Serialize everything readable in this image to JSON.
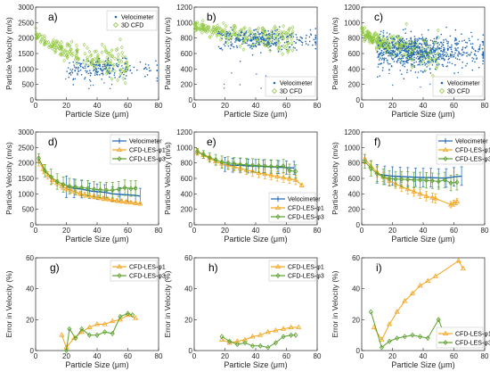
{
  "colors": {
    "velocimeter": "#1f66b4",
    "cfd": "#8ec63f",
    "phi1": "#f2a51e",
    "phi3": "#5aa02c",
    "axis": "#262626"
  },
  "chart_data": [
    {
      "id": "a",
      "panel_label": "a)",
      "type": "scatter",
      "xlabel": "Particle Size (μm)",
      "ylabel": "Particle Velocity (m/s)",
      "xlim": [
        0,
        80
      ],
      "ylim": [
        0,
        3000
      ],
      "xticks": [
        0,
        20,
        40,
        60,
        80
      ],
      "yticks": [
        0,
        500,
        1000,
        1500,
        2000,
        2500,
        3000
      ],
      "legend": {
        "position": "top-right",
        "entries": [
          "Velocimeter",
          "3D CFD"
        ]
      },
      "cloud": {
        "velocimeter": {
          "x_range": [
            20,
            70
          ],
          "y_center": 1000,
          "y_spread": 150,
          "points": 180
        },
        "cfd": {
          "x_range": [
            0,
            60
          ],
          "y_start": 2200,
          "y_end": 1150,
          "y_spread": 200,
          "points": 200
        }
      }
    },
    {
      "id": "b",
      "panel_label": "b)",
      "type": "scatter",
      "xlabel": "Particle Size (μm)",
      "ylabel": "Particle Velocity (m/s)",
      "xlim": [
        0,
        80
      ],
      "ylim": [
        0,
        1200
      ],
      "xticks": [
        0,
        20,
        40,
        60,
        80
      ],
      "yticks": [
        0,
        200,
        400,
        600,
        800,
        1000,
        1200
      ],
      "legend": {
        "position": "bottom-right",
        "entries": [
          "Velocimeter",
          "3D CFD"
        ]
      },
      "cloud": {
        "velocimeter": {
          "x_range": [
            15,
            75
          ],
          "y_center": 780,
          "y_spread": 70,
          "points": 260
        },
        "cfd": {
          "x_range": [
            0,
            65
          ],
          "y_start": 980,
          "y_end": 780,
          "y_spread": 70,
          "points": 240
        }
      }
    },
    {
      "id": "c",
      "panel_label": "c)",
      "type": "scatter",
      "xlabel": "Particle Size (μm)",
      "ylabel": "Particle Velocity (m/s)",
      "xlim": [
        0,
        80
      ],
      "ylim": [
        0,
        1200
      ],
      "xticks": [
        0,
        20,
        40,
        60,
        80
      ],
      "yticks": [
        0,
        200,
        400,
        600,
        800,
        1000,
        1200
      ],
      "legend": {
        "position": "bottom-right",
        "entries": [
          "Velocimeter",
          "3D CFD"
        ]
      },
      "cloud": {
        "velocimeter": {
          "x_range": [
            10,
            70
          ],
          "y_center": 620,
          "y_spread": 110,
          "points": 700
        },
        "cfd": {
          "x_range": [
            0,
            50
          ],
          "y_start": 900,
          "y_end": 600,
          "y_spread": 90,
          "points": 260
        }
      }
    },
    {
      "id": "d",
      "panel_label": "d)",
      "type": "line",
      "xlabel": "Particle Size (μm)",
      "ylabel": "Particle Velocity (m/s)",
      "xlim": [
        0,
        80
      ],
      "ylim": [
        0,
        3000
      ],
      "xticks": [
        0,
        20,
        40,
        60,
        80
      ],
      "yticks": [
        0,
        500,
        1000,
        1500,
        2000,
        2500,
        3000
      ],
      "legend": {
        "position": "top-right"
      },
      "series": [
        {
          "name": "Velocimeter",
          "color_key": "velocimeter",
          "x": [
            20,
            25,
            30,
            35,
            40,
            45,
            50,
            55,
            60,
            65,
            68
          ],
          "y": [
            1230,
            1180,
            1150,
            1100,
            1070,
            1050,
            1000,
            980,
            970,
            950,
            930
          ],
          "err": [
            350,
            300,
            280,
            250,
            250,
            250,
            230,
            220,
            220,
            250,
            250
          ]
        },
        {
          "name": "CFD-LES-φ1",
          "color_key": "phi1",
          "x": [
            2,
            5,
            8,
            11,
            14,
            17,
            20,
            23,
            26,
            29,
            32,
            35,
            38,
            41,
            44,
            47,
            50,
            53,
            56,
            59,
            62,
            65,
            68
          ],
          "y": [
            2050,
            1800,
            1600,
            1450,
            1350,
            1250,
            1170,
            1110,
            1060,
            1010,
            970,
            940,
            910,
            880,
            850,
            830,
            800,
            780,
            760,
            740,
            720,
            700,
            680
          ],
          "err": [
            150,
            150,
            120,
            120,
            100,
            100,
            100,
            90,
            90,
            80,
            80,
            80,
            70,
            70,
            70,
            60,
            60,
            60,
            60,
            60,
            50,
            50,
            50
          ]
        },
        {
          "name": "CFD-LES-φ3",
          "color_key": "phi3",
          "x": [
            2,
            6,
            10,
            14,
            18,
            22,
            26,
            30,
            34,
            38,
            42,
            46,
            50,
            54,
            58,
            62,
            65
          ],
          "y": [
            2150,
            1750,
            1550,
            1400,
            1300,
            1250,
            1220,
            1200,
            1180,
            1150,
            1130,
            1120,
            1120,
            1150,
            1200,
            1170,
            1180
          ],
          "err": [
            150,
            200,
            250,
            250,
            250,
            250,
            250,
            250,
            250,
            250,
            250,
            250,
            250,
            250,
            250,
            250,
            250
          ]
        }
      ]
    },
    {
      "id": "e",
      "panel_label": "e)",
      "type": "line",
      "xlabel": "Particle Size (μm)",
      "ylabel": "Particle Velocity (m/s)",
      "xlim": [
        0,
        80
      ],
      "ylim": [
        0,
        1200
      ],
      "xticks": [
        0,
        20,
        40,
        60,
        80
      ],
      "yticks": [
        0,
        200,
        400,
        600,
        800,
        1000,
        1200
      ],
      "legend": {
        "position": "bottom-right"
      },
      "series": [
        {
          "name": "Velocimeter",
          "color_key": "velocimeter",
          "x": [
            20,
            25,
            30,
            35,
            40,
            45,
            50,
            55,
            60,
            65
          ],
          "y": [
            780,
            770,
            770,
            760,
            760,
            755,
            750,
            745,
            740,
            735
          ],
          "err": [
            90,
            90,
            90,
            90,
            85,
            85,
            85,
            85,
            85,
            85
          ]
        },
        {
          "name": "CFD-LES-φ1",
          "color_key": "phi1",
          "x": [
            2,
            6,
            10,
            14,
            18,
            22,
            26,
            30,
            34,
            38,
            42,
            46,
            50,
            54,
            58,
            62,
            66,
            70
          ],
          "y": [
            940,
            900,
            860,
            820,
            790,
            770,
            750,
            730,
            710,
            690,
            670,
            655,
            640,
            625,
            610,
            595,
            580,
            510
          ],
          "err": [
            40,
            40,
            40,
            45,
            50,
            55,
            55,
            60,
            60,
            60,
            60,
            60,
            60,
            60,
            60,
            60,
            60,
            20
          ]
        },
        {
          "name": "CFD-LES-φ3",
          "color_key": "phi3",
          "x": [
            2,
            6,
            10,
            14,
            18,
            22,
            26,
            30,
            34,
            38,
            42,
            46,
            50,
            54,
            58,
            62,
            66
          ],
          "y": [
            950,
            910,
            870,
            840,
            810,
            800,
            790,
            780,
            775,
            770,
            765,
            760,
            755,
            750,
            760,
            700,
            690
          ],
          "err": [
            40,
            50,
            60,
            70,
            80,
            80,
            80,
            85,
            85,
            85,
            85,
            85,
            85,
            85,
            85,
            85,
            85
          ]
        }
      ]
    },
    {
      "id": "f",
      "panel_label": "f)",
      "type": "line",
      "xlabel": "Particle Size (μm)",
      "ylabel": "Particle Velocity (m/s)",
      "xlim": [
        0,
        80
      ],
      "ylim": [
        0,
        1200
      ],
      "xticks": [
        0,
        20,
        40,
        60,
        80
      ],
      "yticks": [
        0,
        200,
        400,
        600,
        800,
        1000,
        1200
      ],
      "legend": {
        "position": "top-right"
      },
      "series": [
        {
          "name": "Velocimeter",
          "color_key": "velocimeter",
          "x": [
            10,
            15,
            20,
            25,
            30,
            35,
            40,
            45,
            50,
            55,
            60,
            65
          ],
          "y": [
            660,
            640,
            630,
            625,
            620,
            615,
            610,
            610,
            605,
            605,
            620,
            630
          ],
          "err": [
            120,
            120,
            120,
            120,
            120,
            120,
            120,
            120,
            120,
            120,
            120,
            120
          ]
        },
        {
          "name": "CFD-LES-φ1",
          "color_key": "phi1",
          "x": [
            2,
            6,
            10,
            14,
            18,
            22,
            26,
            30,
            34,
            38,
            42,
            46,
            48,
            58,
            60,
            62
          ],
          "y": [
            850,
            760,
            680,
            620,
            570,
            530,
            490,
            460,
            430,
            400,
            370,
            350,
            340,
            260,
            280,
            300
          ],
          "err": [
            60,
            60,
            60,
            60,
            60,
            60,
            60,
            60,
            60,
            60,
            60,
            60,
            60,
            40,
            40,
            40
          ]
        },
        {
          "name": "CFD-LES-φ3",
          "color_key": "phi3",
          "x": [
            2,
            6,
            10,
            14,
            18,
            22,
            26,
            30,
            34,
            38,
            42,
            46,
            50,
            54,
            58,
            62
          ],
          "y": [
            820,
            730,
            660,
            620,
            600,
            590,
            590,
            585,
            580,
            580,
            575,
            570,
            560,
            580,
            540,
            550
          ],
          "err": [
            90,
            100,
            100,
            100,
            100,
            100,
            100,
            100,
            100,
            100,
            100,
            100,
            100,
            100,
            100,
            100
          ]
        }
      ]
    },
    {
      "id": "g",
      "panel_label": "g)",
      "type": "line",
      "xlabel": "Particle Size (μm)",
      "ylabel": "Error in Velocity (%)",
      "xlim": [
        0,
        80
      ],
      "ylim": [
        0,
        60
      ],
      "xticks": [
        0,
        20,
        40,
        60,
        80
      ],
      "yticks": [
        0,
        20,
        40,
        60
      ],
      "legend": {
        "position": "top-right"
      },
      "series": [
        {
          "name": "CFD-LES-φ1",
          "color_key": "phi1",
          "x": [
            17,
            20,
            25,
            30,
            35,
            40,
            45,
            50,
            55,
            60,
            65
          ],
          "y": [
            10,
            2,
            8,
            12,
            15,
            17,
            17,
            19,
            20,
            23,
            21
          ]
        },
        {
          "name": "CFD-LES-φ3",
          "color_key": "phi3",
          "x": [
            20,
            22,
            26,
            30,
            35,
            40,
            45,
            50,
            55,
            60,
            63
          ],
          "y": [
            0,
            14,
            8,
            14,
            10,
            10,
            12,
            11,
            22,
            24,
            23
          ]
        }
      ]
    },
    {
      "id": "h",
      "panel_label": "h)",
      "type": "line",
      "xlabel": "Particle Size (μm)",
      "ylabel": "Error in Velocity (%)",
      "xlim": [
        0,
        80
      ],
      "ylim": [
        0,
        60
      ],
      "xticks": [
        0,
        20,
        40,
        60,
        80
      ],
      "yticks": [
        0,
        20,
        40,
        60
      ],
      "legend": {
        "position": "top-right"
      },
      "series": [
        {
          "name": "CFD-LES-φ1",
          "color_key": "phi1",
          "x": [
            18,
            23,
            28,
            33,
            38,
            43,
            48,
            53,
            58,
            63,
            68
          ],
          "y": [
            7,
            5,
            6,
            7,
            9,
            10,
            12,
            13,
            14,
            15,
            15
          ]
        },
        {
          "name": "CFD-LES-φ3",
          "color_key": "phi3",
          "x": [
            18,
            23,
            28,
            33,
            38,
            43,
            48,
            53,
            58,
            63,
            66
          ],
          "y": [
            9,
            6,
            4,
            5,
            3,
            3,
            2,
            5,
            9,
            10,
            10
          ]
        }
      ]
    },
    {
      "id": "i",
      "panel_label": "i)",
      "type": "line",
      "xlabel": "Particle Size (μm)",
      "ylabel": "Error in Velocity (%)",
      "xlim": [
        0,
        80
      ],
      "ylim": [
        0,
        60
      ],
      "xticks": [
        0,
        20,
        40,
        60,
        80
      ],
      "yticks": [
        0,
        20,
        40,
        60
      ],
      "legend": {
        "position": "bottom-right"
      },
      "series": [
        {
          "name": "CFD-LES-φ1",
          "color_key": "phi1",
          "x": [
            8,
            13,
            18,
            23,
            28,
            33,
            38,
            43,
            48,
            63,
            66
          ],
          "y": [
            15,
            7,
            17,
            25,
            32,
            37,
            42,
            45,
            48,
            58,
            53
          ]
        },
        {
          "name": "CFD-LES-φ3",
          "color_key": "phi3",
          "x": [
            6,
            13,
            18,
            23,
            28,
            33,
            38,
            43,
            50,
            55,
            63
          ],
          "y": [
            25,
            2,
            6,
            8,
            9,
            10,
            9,
            8,
            20,
            7,
            11
          ]
        }
      ]
    }
  ]
}
